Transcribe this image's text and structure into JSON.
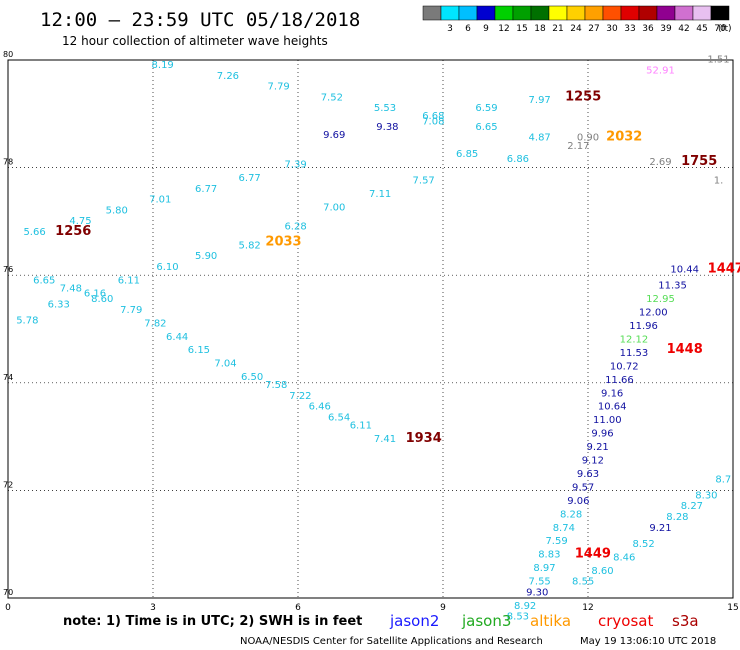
{
  "header": {
    "title": "12:00 – 23:59 UTC 05/18/2018",
    "subtitle": "12 hour collection of altimeter wave heights"
  },
  "colorbar": {
    "ticks": [
      "3",
      "6",
      "9",
      "12",
      "15",
      "18",
      "21",
      "24",
      "27",
      "30",
      "33",
      "36",
      "39",
      "42",
      "45",
      "70"
    ],
    "unit": "(ft)",
    "colors": [
      "#7a7a7a",
      "#00e5ff",
      "#00bfff",
      "#0000d0",
      "#00d000",
      "#00a000",
      "#007000",
      "#ffff00",
      "#ffd000",
      "#ffa000",
      "#ff5000",
      "#e00000",
      "#b00000",
      "#900090",
      "#d070d0",
      "#e8c0f0",
      "#000000"
    ]
  },
  "footer": {
    "note": "note:  1) Time is in UTC;  2) SWH is in feet",
    "credit": "NOAA/NESDIS Center for Satellite Applications and Research",
    "timestamp": "May 19 13:06:10 UTC 2018"
  },
  "legend": [
    {
      "name": "jason2",
      "color": "#1a1aff"
    },
    {
      "name": "jason3",
      "color": "#22aa22"
    },
    {
      "name": "altika",
      "color": "#ff9900"
    },
    {
      "name": "cryosat",
      "color": "#ee0000"
    },
    {
      "name": "s3a",
      "color": "#aa0000"
    }
  ],
  "chart_data": {
    "type": "map",
    "xlim": [
      0,
      15
    ],
    "ylim": [
      70,
      80
    ],
    "x_ticks": [
      "0",
      "3",
      "6",
      "9",
      "12",
      "15"
    ],
    "y_ticks": [
      "70",
      "72",
      "74",
      "76",
      "78",
      "80"
    ],
    "grid": true,
    "colors": {
      "cyan": "#1fc0e0",
      "navy": "#1010a0",
      "green": "#55dd55",
      "gray": "#808080",
      "orange": "#ff9900",
      "maroon": "#800000",
      "red": "#ee0000",
      "pink": "#ff80ff",
      "light": "#c0c0c0"
    },
    "points": [
      {
        "x": 3.2,
        "y": 79.85,
        "t": "8.19",
        "c": "cyan"
      },
      {
        "x": 4.55,
        "y": 79.65,
        "t": "7.26",
        "c": "cyan"
      },
      {
        "x": 5.6,
        "y": 79.45,
        "t": "7.79",
        "c": "cyan"
      },
      {
        "x": 6.7,
        "y": 79.25,
        "t": "7.52",
        "c": "cyan"
      },
      {
        "x": 7.8,
        "y": 79.05,
        "t": "5.53",
        "c": "cyan"
      },
      {
        "x": 8.8,
        "y": 78.9,
        "t": "6.68",
        "c": "cyan"
      },
      {
        "x": 8.8,
        "y": 78.8,
        "t": "7.08",
        "c": "cyan"
      },
      {
        "x": 9.9,
        "y": 79.05,
        "t": "6.59",
        "c": "cyan"
      },
      {
        "x": 9.9,
        "y": 78.7,
        "t": "6.65",
        "c": "cyan"
      },
      {
        "x": 11.0,
        "y": 79.2,
        "t": "7.97",
        "c": "cyan"
      },
      {
        "x": 11.0,
        "y": 78.5,
        "t": "4.87",
        "c": "cyan"
      },
      {
        "x": 10.55,
        "y": 78.1,
        "t": "6.86",
        "c": "cyan"
      },
      {
        "x": 9.5,
        "y": 78.2,
        "t": "6.85",
        "c": "cyan"
      },
      {
        "x": 8.6,
        "y": 77.7,
        "t": "7.57",
        "c": "cyan"
      },
      {
        "x": 7.7,
        "y": 77.45,
        "t": "7.11",
        "c": "cyan"
      },
      {
        "x": 6.75,
        "y": 77.2,
        "t": "7.00",
        "c": "cyan"
      },
      {
        "x": 5.95,
        "y": 78.0,
        "t": "7.39",
        "c": "cyan"
      },
      {
        "x": 5.0,
        "y": 77.75,
        "t": "6.77",
        "c": "cyan"
      },
      {
        "x": 4.1,
        "y": 77.55,
        "t": "6.77",
        "c": "cyan"
      },
      {
        "x": 3.15,
        "y": 77.35,
        "t": "7.01",
        "c": "cyan"
      },
      {
        "x": 2.25,
        "y": 77.15,
        "t": "5.80",
        "c": "cyan"
      },
      {
        "x": 1.5,
        "y": 76.95,
        "t": "4.75",
        "c": "cyan"
      },
      {
        "x": 0.55,
        "y": 76.75,
        "t": "5.66",
        "c": "cyan"
      },
      {
        "x": 5.95,
        "y": 76.85,
        "t": "6.28",
        "c": "cyan"
      },
      {
        "x": 5.0,
        "y": 76.5,
        "t": "5.82",
        "c": "cyan"
      },
      {
        "x": 4.1,
        "y": 76.3,
        "t": "5.90",
        "c": "cyan"
      },
      {
        "x": 3.3,
        "y": 76.1,
        "t": "6.10",
        "c": "cyan"
      },
      {
        "x": 2.5,
        "y": 75.85,
        "t": "6.11",
        "c": "cyan"
      },
      {
        "x": 1.8,
        "y": 75.6,
        "t": "6.16",
        "c": "cyan"
      },
      {
        "x": 1.05,
        "y": 75.4,
        "t": "6.33",
        "c": "cyan"
      },
      {
        "x": 0.4,
        "y": 75.1,
        "t": "5.78",
        "c": "cyan"
      },
      {
        "x": 6.75,
        "y": 78.55,
        "t": "9.69",
        "c": "navy"
      },
      {
        "x": 7.85,
        "y": 78.7,
        "t": "9.38",
        "c": "navy"
      },
      {
        "x": 12.0,
        "y": 78.5,
        "t": "0.90",
        "c": "gray"
      },
      {
        "x": 11.8,
        "y": 78.35,
        "t": "2.17",
        "c": "gray"
      },
      {
        "x": 13.5,
        "y": 78.05,
        "t": "2.69",
        "c": "gray"
      },
      {
        "x": 14.7,
        "y": 79.95,
        "t": "1.51",
        "c": "gray"
      },
      {
        "x": 14.7,
        "y": 77.7,
        "t": "1.",
        "c": "gray"
      },
      {
        "x": 13.5,
        "y": 79.75,
        "t": "52.91",
        "c": "pink"
      },
      {
        "x": 11.9,
        "y": 79.25,
        "t": "1255",
        "c": "maroon",
        "big": true
      },
      {
        "x": 1.35,
        "y": 76.75,
        "t": "1256",
        "c": "maroon",
        "big": true
      },
      {
        "x": 14.3,
        "y": 78.05,
        "t": "1755",
        "c": "maroon",
        "big": true
      },
      {
        "x": 12.75,
        "y": 78.5,
        "t": "2032",
        "c": "orange",
        "big": true
      },
      {
        "x": 5.7,
        "y": 76.55,
        "t": "2033",
        "c": "orange",
        "big": true
      },
      {
        "x": 0.75,
        "y": 75.85,
        "t": "6.65",
        "c": "cyan"
      },
      {
        "x": 1.3,
        "y": 75.7,
        "t": "7.48",
        "c": "cyan"
      },
      {
        "x": 1.95,
        "y": 75.5,
        "t": "8.60",
        "c": "cyan"
      },
      {
        "x": 2.55,
        "y": 75.3,
        "t": "7.79",
        "c": "cyan"
      },
      {
        "x": 3.05,
        "y": 75.05,
        "t": "7.82",
        "c": "cyan"
      },
      {
        "x": 3.5,
        "y": 74.8,
        "t": "6.44",
        "c": "cyan"
      },
      {
        "x": 3.95,
        "y": 74.55,
        "t": "6.15",
        "c": "cyan"
      },
      {
        "x": 4.5,
        "y": 74.3,
        "t": "7.04",
        "c": "cyan"
      },
      {
        "x": 5.05,
        "y": 74.05,
        "t": "6.50",
        "c": "cyan"
      },
      {
        "x": 5.55,
        "y": 73.9,
        "t": "7.58",
        "c": "cyan"
      },
      {
        "x": 6.05,
        "y": 73.7,
        "t": "7.22",
        "c": "cyan"
      },
      {
        "x": 6.45,
        "y": 73.5,
        "t": "6.46",
        "c": "cyan"
      },
      {
        "x": 6.85,
        "y": 73.3,
        "t": "6.54",
        "c": "cyan"
      },
      {
        "x": 7.3,
        "y": 73.15,
        "t": "6.11",
        "c": "cyan"
      },
      {
        "x": 7.8,
        "y": 72.9,
        "t": "7.41",
        "c": "cyan"
      },
      {
        "x": 8.6,
        "y": 72.9,
        "t": "1934",
        "c": "maroon",
        "big": true
      },
      {
        "x": 14.0,
        "y": 76.05,
        "t": "10.44",
        "c": "navy"
      },
      {
        "x": 13.75,
        "y": 75.75,
        "t": "11.35",
        "c": "navy"
      },
      {
        "x": 13.5,
        "y": 75.5,
        "t": "12.95",
        "c": "green"
      },
      {
        "x": 13.35,
        "y": 75.25,
        "t": "12.00",
        "c": "navy"
      },
      {
        "x": 13.15,
        "y": 75.0,
        "t": "11.96",
        "c": "navy"
      },
      {
        "x": 12.95,
        "y": 74.75,
        "t": "12.12",
        "c": "green"
      },
      {
        "x": 12.95,
        "y": 74.5,
        "t": "11.53",
        "c": "navy"
      },
      {
        "x": 12.75,
        "y": 74.25,
        "t": "10.72",
        "c": "navy"
      },
      {
        "x": 12.65,
        "y": 74.0,
        "t": "11.66",
        "c": "navy"
      },
      {
        "x": 12.5,
        "y": 73.75,
        "t": "9.16",
        "c": "navy"
      },
      {
        "x": 12.5,
        "y": 73.5,
        "t": "10.64",
        "c": "navy"
      },
      {
        "x": 12.4,
        "y": 73.25,
        "t": "11.00",
        "c": "navy"
      },
      {
        "x": 12.3,
        "y": 73.0,
        "t": "9.96",
        "c": "navy"
      },
      {
        "x": 12.2,
        "y": 72.75,
        "t": "9.21",
        "c": "navy"
      },
      {
        "x": 12.1,
        "y": 72.5,
        "t": "9.12",
        "c": "navy"
      },
      {
        "x": 12.0,
        "y": 72.25,
        "t": "9.63",
        "c": "navy"
      },
      {
        "x": 11.9,
        "y": 72.0,
        "t": "9.57",
        "c": "navy"
      },
      {
        "x": 11.8,
        "y": 71.75,
        "t": "9.06",
        "c": "navy"
      },
      {
        "x": 11.65,
        "y": 71.5,
        "t": "8.28",
        "c": "cyan"
      },
      {
        "x": 11.5,
        "y": 71.25,
        "t": "8.74",
        "c": "cyan"
      },
      {
        "x": 11.35,
        "y": 71.0,
        "t": "7.59",
        "c": "cyan"
      },
      {
        "x": 11.2,
        "y": 70.75,
        "t": "8.83",
        "c": "cyan"
      },
      {
        "x": 11.1,
        "y": 70.5,
        "t": "8.97",
        "c": "cyan"
      },
      {
        "x": 11.0,
        "y": 70.25,
        "t": "7.55",
        "c": "cyan"
      },
      {
        "x": 10.95,
        "y": 70.05,
        "t": "9.30",
        "c": "navy"
      },
      {
        "x": 10.7,
        "y": 69.8,
        "t": "8.92",
        "c": "cyan"
      },
      {
        "x": 10.55,
        "y": 69.6,
        "t": "8.53",
        "c": "cyan"
      },
      {
        "x": 14.85,
        "y": 76.05,
        "t": "1447",
        "c": "red",
        "big": true
      },
      {
        "x": 14.0,
        "y": 74.55,
        "t": "1448",
        "c": "red",
        "big": true
      },
      {
        "x": 12.1,
        "y": 70.75,
        "t": "1449",
        "c": "red",
        "big": true
      },
      {
        "x": 13.5,
        "y": 71.25,
        "t": "9.21",
        "c": "navy"
      },
      {
        "x": 11.9,
        "y": 70.25,
        "t": "8.55",
        "c": "cyan"
      },
      {
        "x": 12.3,
        "y": 70.45,
        "t": "8.60",
        "c": "cyan"
      },
      {
        "x": 12.75,
        "y": 70.7,
        "t": "8.46",
        "c": "cyan"
      },
      {
        "x": 13.15,
        "y": 70.95,
        "t": "8.52",
        "c": "cyan"
      },
      {
        "x": 13.85,
        "y": 71.45,
        "t": "8.28",
        "c": "cyan"
      },
      {
        "x": 14.15,
        "y": 71.65,
        "t": "8.27",
        "c": "cyan"
      },
      {
        "x": 14.45,
        "y": 71.85,
        "t": "8.30",
        "c": "cyan"
      },
      {
        "x": 14.8,
        "y": 72.15,
        "t": "8.7",
        "c": "cyan"
      }
    ]
  }
}
